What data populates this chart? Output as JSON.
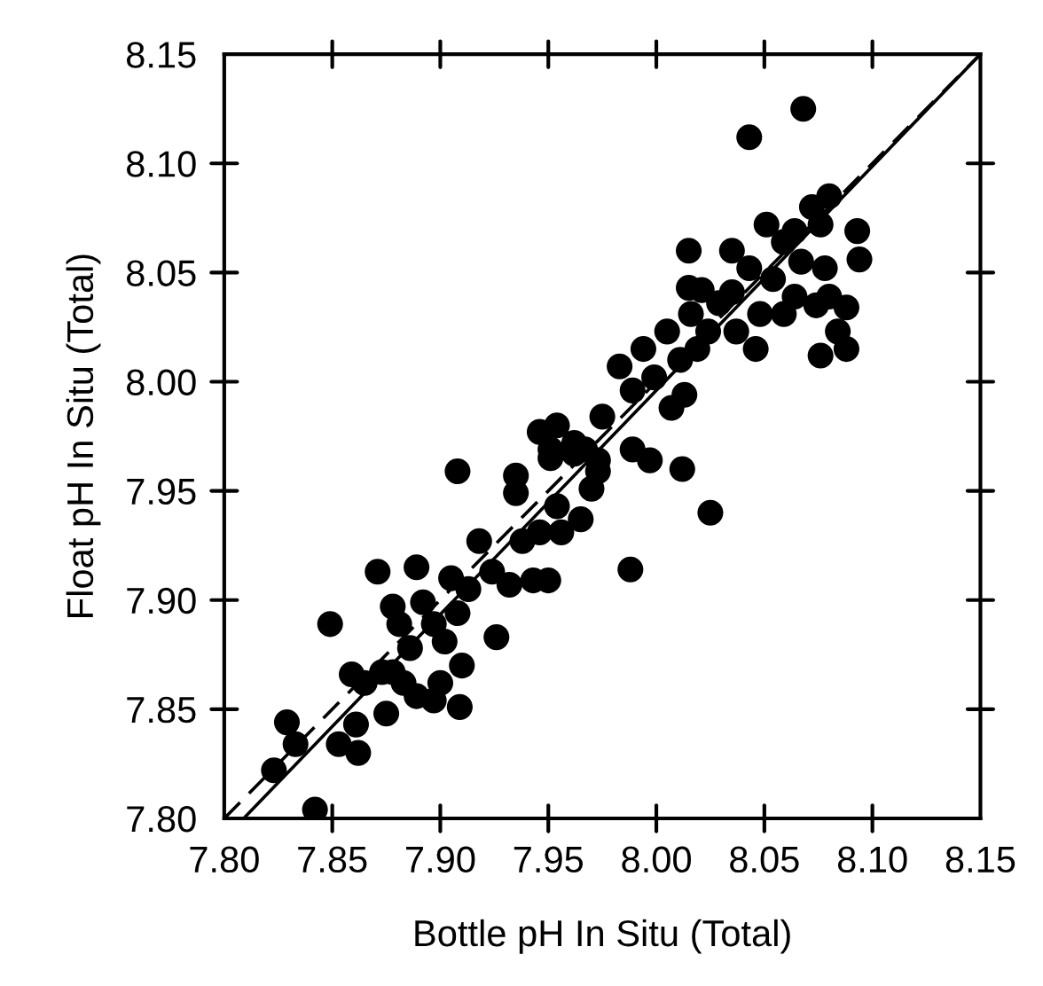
{
  "chart_data": {
    "type": "scatter",
    "xlabel": "Bottle pH In Situ (Total)",
    "ylabel": "Float pH In Situ (Total)",
    "xlim": [
      7.8,
      8.15
    ],
    "ylim": [
      7.8,
      8.15
    ],
    "xticks": [
      {
        "value": 7.8,
        "label": "7.80"
      },
      {
        "value": 7.85,
        "label": "7.85"
      },
      {
        "value": 7.9,
        "label": "7.90"
      },
      {
        "value": 7.95,
        "label": "7.95"
      },
      {
        "value": 8.0,
        "label": "8.00"
      },
      {
        "value": 8.05,
        "label": "8.05"
      },
      {
        "value": 8.1,
        "label": "8.10"
      },
      {
        "value": 8.15,
        "label": "8.15"
      }
    ],
    "yticks": [
      {
        "value": 7.8,
        "label": "7.80"
      },
      {
        "value": 7.85,
        "label": "7.85"
      },
      {
        "value": 7.9,
        "label": "7.90"
      },
      {
        "value": 7.95,
        "label": "7.95"
      },
      {
        "value": 8.0,
        "label": "8.00"
      },
      {
        "value": 8.05,
        "label": "8.05"
      },
      {
        "value": 8.1,
        "label": "8.10"
      },
      {
        "value": 8.15,
        "label": "8.15"
      }
    ],
    "grid": false,
    "series": [
      {
        "color": "#000000",
        "marker": "circle",
        "x": [
          7.908,
          7.935,
          7.935,
          7.871,
          7.889,
          7.849,
          7.829,
          7.833,
          7.823,
          7.842,
          7.853,
          7.862,
          7.861,
          7.859,
          7.875,
          7.878,
          7.883,
          7.889,
          7.878,
          7.881,
          7.892,
          7.897,
          7.902,
          7.908,
          7.91,
          7.897,
          7.909,
          7.9,
          7.913,
          7.905,
          7.918,
          7.924,
          7.926,
          7.932,
          7.943,
          7.95,
          7.938,
          7.946,
          7.954,
          7.956,
          7.965,
          7.97,
          7.973,
          7.951,
          7.962,
          7.865,
          7.873,
          7.886,
          7.946,
          7.954,
          7.951,
          7.967,
          7.973,
          7.989,
          7.997,
          8.012,
          7.975,
          7.983,
          7.994,
          7.989,
          7.999,
          8.007,
          8.013,
          8.005,
          8.011,
          8.019,
          8.016,
          8.029,
          8.024,
          8.037,
          8.046,
          8.035,
          8.043,
          8.054,
          8.059,
          8.051,
          8.064,
          8.072,
          8.08,
          8.076,
          8.015,
          8.015,
          8.035,
          8.093,
          8.094,
          8.078,
          8.074,
          8.088,
          8.08,
          8.084,
          8.088,
          8.076,
          8.048,
          8.059,
          8.064,
          8.067,
          8.021,
          7.962,
          8.068,
          8.043,
          8.025,
          7.988
        ],
        "values": [
          7.959,
          7.957,
          7.949,
          7.913,
          7.915,
          7.889,
          7.844,
          7.834,
          7.822,
          7.804,
          7.834,
          7.83,
          7.843,
          7.866,
          7.848,
          7.867,
          7.862,
          7.856,
          7.897,
          7.889,
          7.899,
          7.889,
          7.881,
          7.894,
          7.87,
          7.854,
          7.851,
          7.862,
          7.905,
          7.91,
          7.927,
          7.913,
          7.883,
          7.907,
          7.909,
          7.909,
          7.927,
          7.931,
          7.943,
          7.931,
          7.937,
          7.951,
          7.959,
          7.965,
          7.967,
          7.862,
          7.867,
          7.878,
          7.977,
          7.98,
          7.969,
          7.969,
          7.964,
          7.969,
          7.964,
          7.96,
          7.984,
          8.007,
          8.015,
          7.996,
          8.002,
          7.988,
          7.994,
          8.023,
          8.01,
          8.015,
          8.031,
          8.036,
          8.023,
          8.023,
          8.015,
          8.041,
          8.052,
          8.047,
          8.064,
          8.072,
          8.069,
          8.08,
          8.085,
          8.072,
          8.06,
          8.043,
          8.06,
          8.069,
          8.056,
          8.052,
          8.035,
          8.034,
          8.039,
          8.023,
          8.015,
          8.012,
          8.031,
          8.031,
          8.039,
          8.055,
          8.042,
          7.972,
          8.125,
          8.112,
          7.94,
          7.914
        ]
      },
      {
        "type": "line",
        "color": "#000000",
        "marker": "none",
        "line_style": "dashed",
        "x": [
          7.8,
          8.15
        ],
        "values": [
          7.8,
          8.15
        ]
      },
      {
        "type": "line",
        "color": "#000000",
        "marker": "none",
        "line_style": "solid",
        "x": [
          7.809,
          8.15
        ],
        "values": [
          7.8,
          8.15
        ]
      }
    ]
  }
}
